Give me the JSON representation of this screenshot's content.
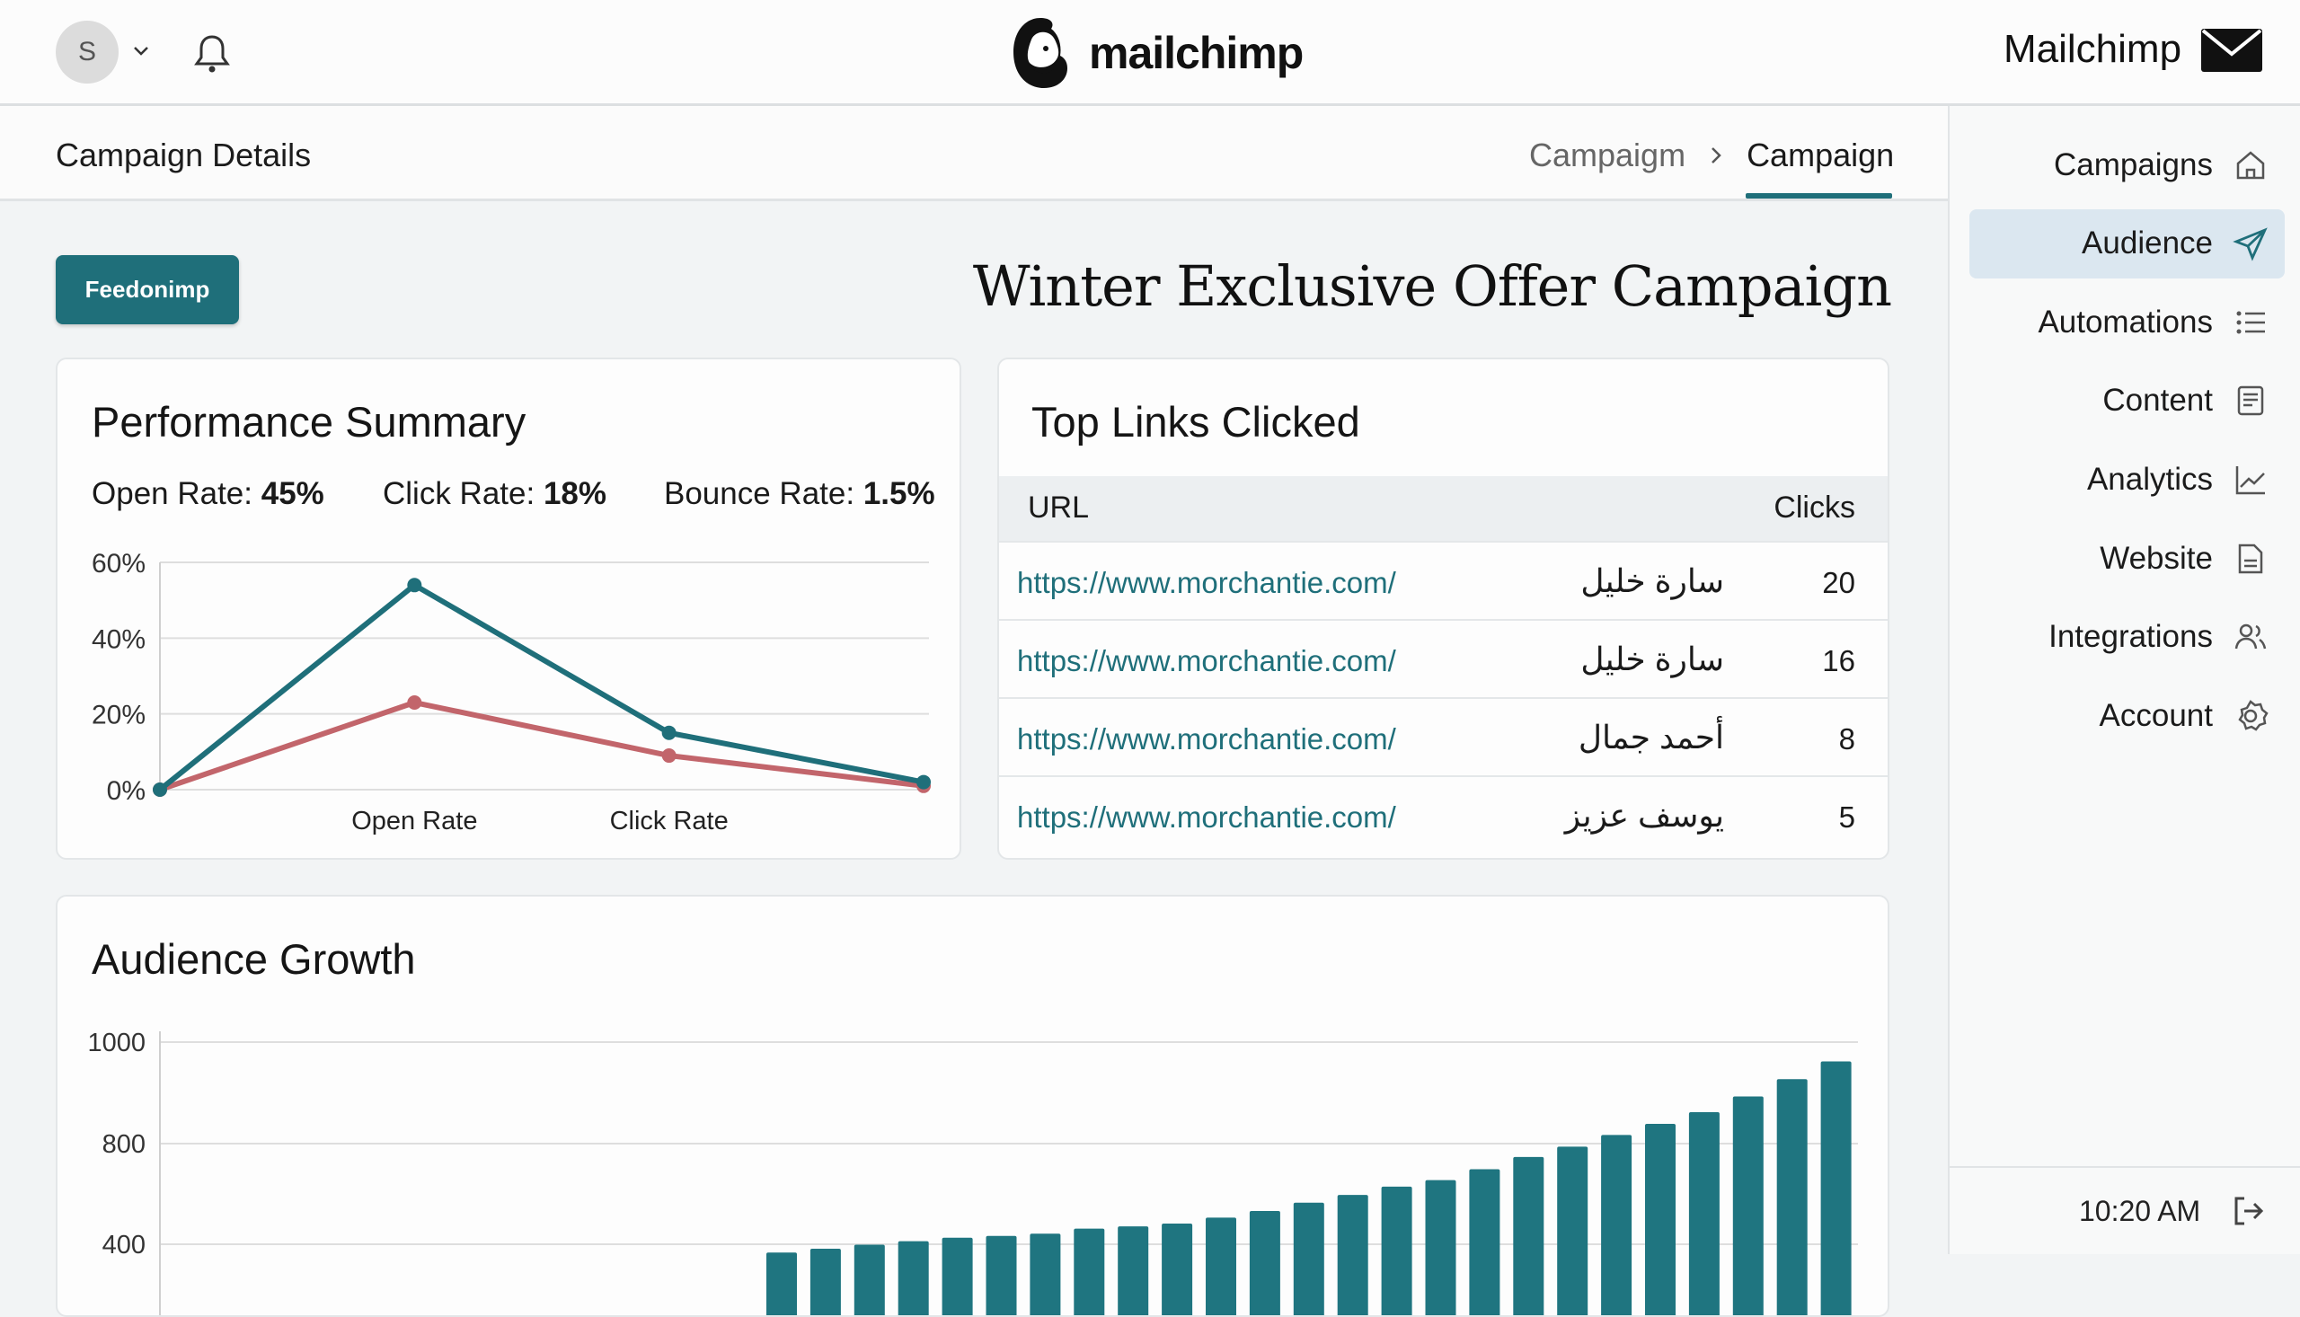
{
  "topbar": {
    "avatar_initial": "S",
    "logo_text": "mailchimp",
    "brand_right": "Mailchimp"
  },
  "subbar": {
    "page_title": "Campaign Details",
    "breadcrumb": [
      "Campaigm",
      "Campaign"
    ]
  },
  "main": {
    "feed_button": "Feedonimp",
    "campaign_title": "Winter Exclusive Offer Campaign"
  },
  "performance": {
    "title": "Performance Summary",
    "stats": [
      {
        "label": "Open Rate:",
        "value": "45%"
      },
      {
        "label": "Click Rate:",
        "value": "18%"
      },
      {
        "label": "Bounce Rate:",
        "value": "1.5%"
      }
    ]
  },
  "top_links": {
    "title": "Top Links Clicked",
    "headers": {
      "url": "URL",
      "clicks": "Clicks"
    },
    "rows": [
      {
        "url": "https://www.morchantie.com/",
        "name": "سارة خليل",
        "clicks": "20"
      },
      {
        "url": "https://www.morchantie.com/",
        "name": "سارة خليل",
        "clicks": "16"
      },
      {
        "url": "https://www.morchantie.com/",
        "name": "أحمد جمال",
        "clicks": "8"
      },
      {
        "url": "https://www.morchantie.com/",
        "name": "يوسف عزيز",
        "clicks": "5"
      }
    ]
  },
  "audience_growth": {
    "title": "Audience Growth"
  },
  "sidebar": {
    "items": [
      {
        "label": "Campaigns",
        "icon": "home-icon"
      },
      {
        "label": "Audience",
        "icon": "send-icon",
        "active": true
      },
      {
        "label": "Automations",
        "icon": "list-icon"
      },
      {
        "label": "Content",
        "icon": "document-icon"
      },
      {
        "label": "Analytics",
        "icon": "chart-line-icon"
      },
      {
        "label": "Website",
        "icon": "file-icon"
      },
      {
        "label": "Integrations",
        "icon": "users-icon"
      },
      {
        "label": "Account",
        "icon": "gear-icon"
      }
    ],
    "time": "10:20 AM"
  },
  "colors": {
    "accent": "#1f6f7a",
    "series_red": "#c2656b",
    "active_bg": "#dbe7f0"
  },
  "chart_data": [
    {
      "type": "line",
      "title": "",
      "x_tick_labels": [
        "",
        "Open Rate",
        "Click Rate",
        ""
      ],
      "y_ticks": [
        "0%",
        "20%",
        "40%",
        "60%"
      ],
      "ylim": [
        0,
        60
      ],
      "grid": true,
      "series": [
        {
          "color": "#1f6f7a",
          "values": [
            0,
            54,
            15,
            2
          ]
        },
        {
          "color": "#c2656b",
          "values": [
            0,
            23,
            9,
            1
          ]
        }
      ]
    },
    {
      "type": "bar",
      "title": "",
      "y_ticks": [
        "400",
        "800",
        "1000"
      ],
      "grid": true,
      "color": "#1f7580",
      "values": [
        367,
        382,
        398,
        412,
        426,
        433,
        442,
        462,
        471,
        482,
        506,
        532,
        565,
        596,
        629,
        655,
        698,
        747,
        788,
        817,
        839,
        862,
        893,
        927,
        962
      ]
    }
  ]
}
